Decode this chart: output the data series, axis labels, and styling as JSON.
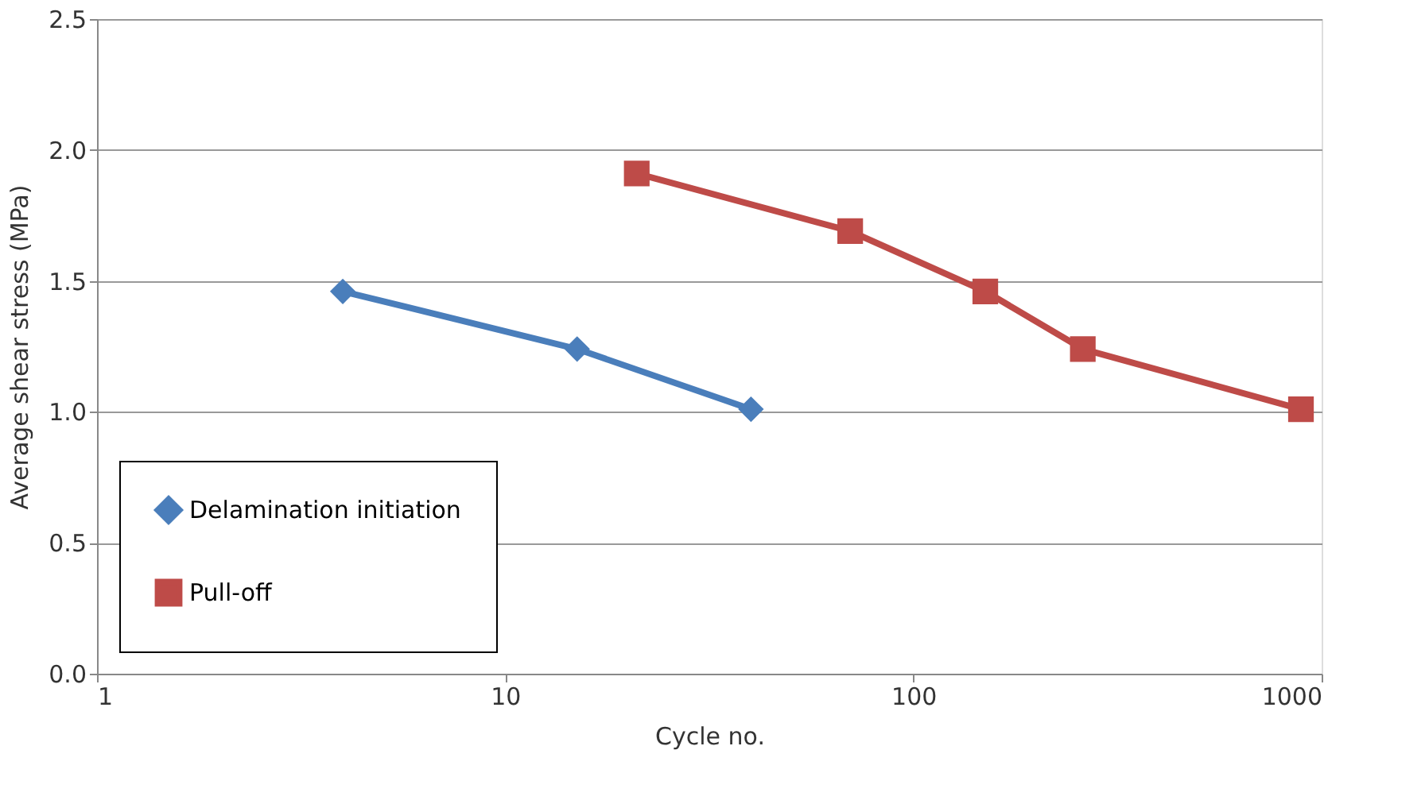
{
  "chart_data": {
    "type": "line",
    "xlabel": "Cycle no.",
    "ylabel": "Average shear stress (MPa)",
    "log": "x",
    "xlim": [
      1,
      1000
    ],
    "xticks": [
      1,
      10,
      100,
      1000
    ],
    "ylim": [
      0,
      2.5
    ],
    "yticks": [
      {
        "value": 0,
        "label": "0.0"
      },
      {
        "value": 0.5,
        "label": "0.5"
      },
      {
        "value": 1,
        "label": "1.0"
      },
      {
        "value": 1.5,
        "label": "1.5"
      },
      {
        "value": 2,
        "label": "2.0"
      },
      {
        "value": 2.5,
        "label": "2.5"
      }
    ],
    "grid": "y",
    "legend": "bottom left",
    "line_style": "solid",
    "series": [
      {
        "name": "Delamination initiation",
        "color": "#4a7ebb",
        "marker": "diamond",
        "x": [
          4,
          15,
          40
        ],
        "values": [
          1.46,
          1.24,
          1.01
        ]
      },
      {
        "name": "Pull-off",
        "color": "#be4b48",
        "marker": "square",
        "x": [
          21,
          70,
          150,
          260,
          890
        ],
        "values": [
          1.91,
          1.69,
          1.46,
          1.24,
          1.01
        ]
      }
    ]
  }
}
